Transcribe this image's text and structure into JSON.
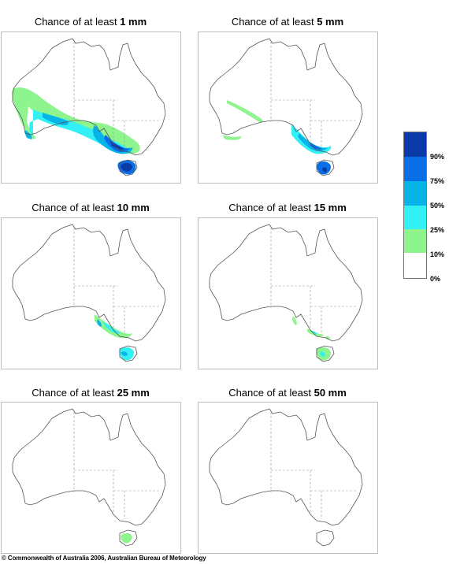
{
  "panels": [
    {
      "prefix": "Chance of at least ",
      "amount": "1 mm"
    },
    {
      "prefix": "Chance of at least ",
      "amount": "5 mm"
    },
    {
      "prefix": "Chance of at least ",
      "amount": "10 mm"
    },
    {
      "prefix": "Chance of at least ",
      "amount": "15 mm"
    },
    {
      "prefix": "Chance of at least ",
      "amount": "25 mm"
    },
    {
      "prefix": "Chance of at least ",
      "amount": "50 mm"
    }
  ],
  "legend": {
    "labels": [
      "90%",
      "75%",
      "50%",
      "25%",
      "10%",
      "0%"
    ],
    "colors": [
      "#0a3aa8",
      "#0a6ee6",
      "#06b4e8",
      "#33f0f4",
      "#8ef48e",
      "#ffffff"
    ]
  },
  "copyright": "© Commonwealth of Australia 2006, Australian Bureau of Meteorology"
}
